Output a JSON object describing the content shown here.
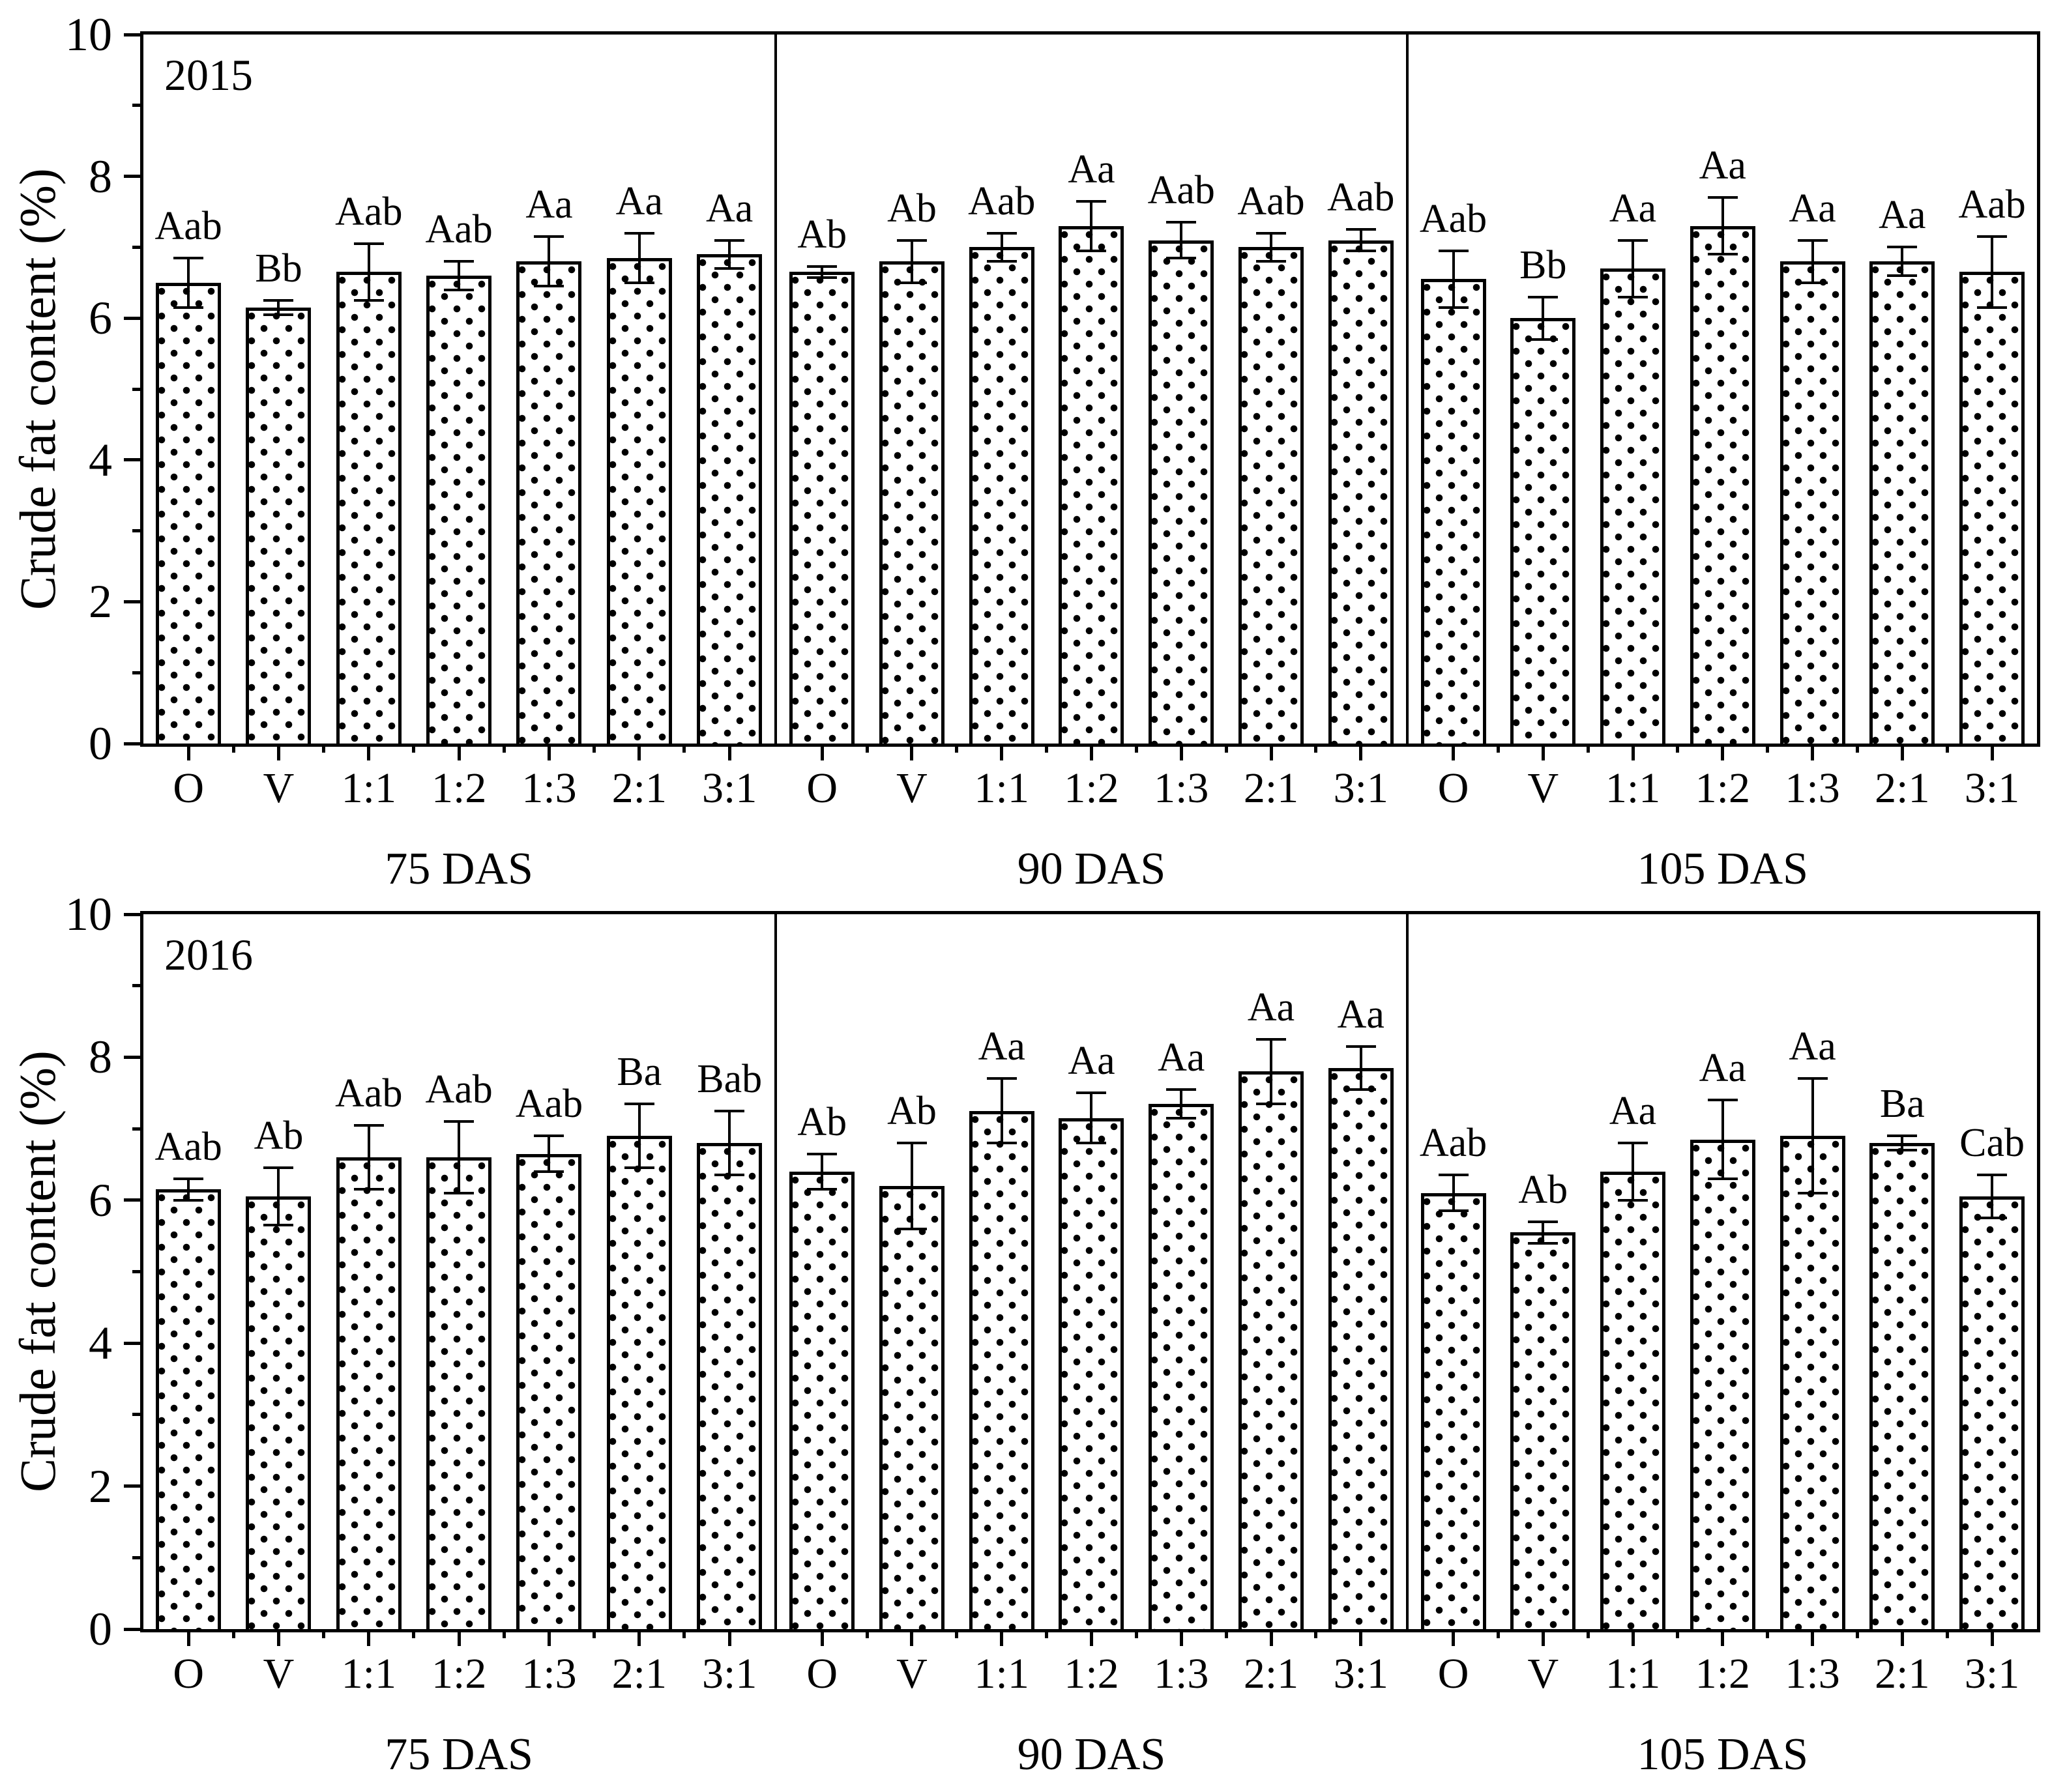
{
  "figure": {
    "background": "#ffffff",
    "axis_color": "#000000",
    "bar_fill": "#ffffff",
    "bar_pattern": "black-dot-grid"
  },
  "chart_data": [
    {
      "type": "bar",
      "year_label": "2015",
      "ylabel": "Crude fat content (%)",
      "ylim": [
        0,
        10
      ],
      "yticks": [
        0,
        2,
        4,
        6,
        8,
        10
      ],
      "grid": false,
      "legend": "none",
      "categories": [
        "O",
        "V",
        "1:1",
        "1:2",
        "1:3",
        "2:1",
        "3:1"
      ],
      "groups": [
        {
          "label": "75 DAS",
          "values": [
            6.5,
            6.15,
            6.65,
            6.6,
            6.8,
            6.85,
            6.9
          ],
          "errors": [
            0.35,
            0.1,
            0.4,
            0.2,
            0.35,
            0.35,
            0.2
          ],
          "sig": [
            "Aab",
            "Bb",
            "Aab",
            "Aab",
            "Aa",
            "Aa",
            "Aa"
          ]
        },
        {
          "label": "90 DAS",
          "values": [
            6.65,
            6.8,
            7.0,
            7.3,
            7.1,
            7.0,
            7.1
          ],
          "errors": [
            0.08,
            0.3,
            0.2,
            0.35,
            0.25,
            0.2,
            0.15
          ],
          "sig": [
            "Ab",
            "Ab",
            "Aab",
            "Aa",
            "Aab",
            "Aab",
            "Aab"
          ]
        },
        {
          "label": "105 DAS",
          "values": [
            6.55,
            6.0,
            6.7,
            7.3,
            6.8,
            6.8,
            6.65
          ],
          "errors": [
            0.4,
            0.3,
            0.4,
            0.4,
            0.3,
            0.2,
            0.5
          ],
          "sig": [
            "Aab",
            "Bb",
            "Aa",
            "Aa",
            "Aa",
            "Aa",
            "Aab"
          ]
        }
      ]
    },
    {
      "type": "bar",
      "year_label": "2016",
      "ylabel": "Crude fat content (%)",
      "ylim": [
        0,
        10
      ],
      "yticks": [
        0,
        2,
        4,
        6,
        8,
        10
      ],
      "grid": false,
      "legend": "none",
      "categories": [
        "O",
        "V",
        "1:1",
        "1:2",
        "1:3",
        "2:1",
        "3:1"
      ],
      "groups": [
        {
          "label": "75 DAS",
          "values": [
            6.15,
            6.05,
            6.6,
            6.6,
            6.65,
            6.9,
            6.8
          ],
          "errors": [
            0.15,
            0.4,
            0.45,
            0.5,
            0.25,
            0.45,
            0.45
          ],
          "sig": [
            "Aab",
            "Ab",
            "Aab",
            "Aab",
            "Aab",
            "Ba",
            "Bab"
          ]
        },
        {
          "label": "90 DAS",
          "values": [
            6.4,
            6.2,
            7.25,
            7.15,
            7.35,
            7.8,
            7.85
          ],
          "errors": [
            0.25,
            0.6,
            0.45,
            0.35,
            0.2,
            0.45,
            0.3
          ],
          "sig": [
            "Ab",
            "Ab",
            "Aa",
            "Aa",
            "Aa",
            "Aa",
            "Aa"
          ]
        },
        {
          "label": "105 DAS",
          "values": [
            6.1,
            5.55,
            6.4,
            6.85,
            6.9,
            6.8,
            6.05
          ],
          "errors": [
            0.25,
            0.15,
            0.4,
            0.55,
            0.8,
            0.1,
            0.3
          ],
          "sig": [
            "Aab",
            "Ab",
            "Aa",
            "Aa",
            "Aa",
            "Ba",
            "Cab"
          ]
        }
      ]
    }
  ]
}
